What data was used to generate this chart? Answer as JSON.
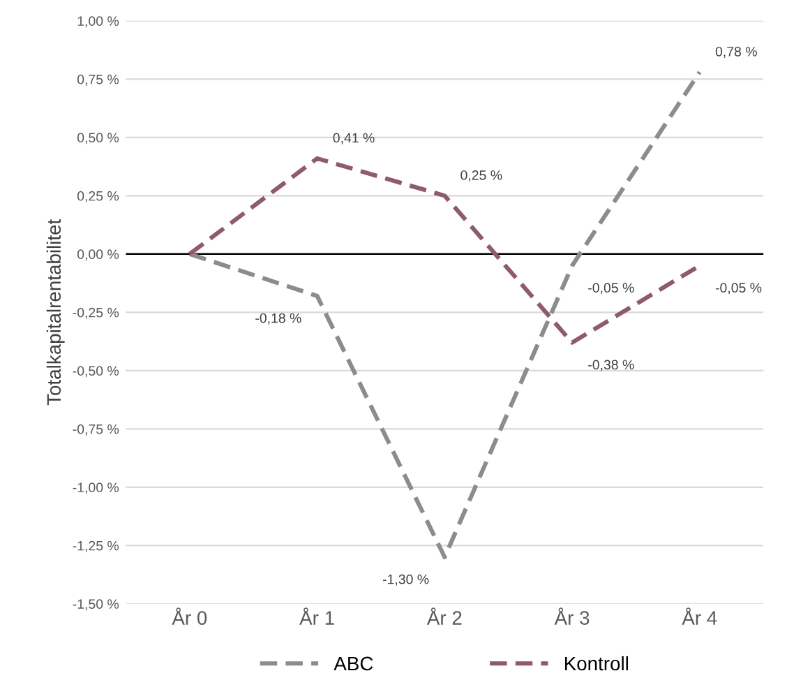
{
  "chart_data": {
    "type": "line",
    "ylabel": "Totalkapitalrentabilitet",
    "categories": [
      "År 0",
      "År 1",
      "År 2",
      "År 3",
      "År 4"
    ],
    "series": [
      {
        "name": "ABC",
        "color": "#8c8c8c",
        "values": [
          0,
          -0.18,
          -1.3,
          -0.05,
          0.78
        ],
        "value_labels": [
          null,
          "-0,18 %",
          "-1,30 %",
          "-0,05 %",
          "0,78 %"
        ]
      },
      {
        "name": "Kontroll",
        "color": "#8e5a6e",
        "values": [
          0,
          0.41,
          0.25,
          -0.38,
          -0.05
        ],
        "value_labels": [
          null,
          "0,41 %",
          "0,25 %",
          "-0,38 %",
          "-0,05 %"
        ]
      }
    ],
    "ylim": [
      -1.5,
      1.0
    ],
    "yticks": [
      {
        "value": -1.5,
        "label": "-1,50 %"
      },
      {
        "value": -1.25,
        "label": "-1,25 %"
      },
      {
        "value": -1.0,
        "label": "-1,00 %"
      },
      {
        "value": -0.75,
        "label": "-0,75 %"
      },
      {
        "value": -0.5,
        "label": "-0,50 %"
      },
      {
        "value": -0.25,
        "label": "-0,25 %"
      },
      {
        "value": 0,
        "label": "0,00 %"
      },
      {
        "value": 0.25,
        "label": "0,25 %"
      },
      {
        "value": 0.5,
        "label": "0,50 %"
      },
      {
        "value": 0.75,
        "label": "0,75 %"
      },
      {
        "value": 1.0,
        "label": "1,00 %"
      }
    ],
    "ref_lines": [
      {
        "axis": "y",
        "value": 0,
        "color": "#000000"
      }
    ],
    "grid": "y",
    "legend": "bottom",
    "line_style": "dashed",
    "marker": "none"
  }
}
